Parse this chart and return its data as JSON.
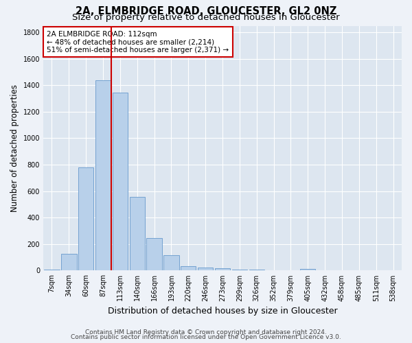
{
  "title": "2A, ELMBRIDGE ROAD, GLOUCESTER, GL2 0NZ",
  "subtitle": "Size of property relative to detached houses in Gloucester",
  "xlabel": "Distribution of detached houses by size in Gloucester",
  "ylabel": "Number of detached properties",
  "bar_color": "#b8d0ea",
  "bar_edge_color": "#6699cc",
  "categories": [
    "7sqm",
    "34sqm",
    "60sqm",
    "87sqm",
    "113sqm",
    "140sqm",
    "166sqm",
    "193sqm",
    "220sqm",
    "246sqm",
    "273sqm",
    "299sqm",
    "326sqm",
    "352sqm",
    "379sqm",
    "405sqm",
    "432sqm",
    "458sqm",
    "485sqm",
    "511sqm",
    "538sqm"
  ],
  "values": [
    10,
    125,
    780,
    1440,
    1345,
    555,
    245,
    115,
    35,
    25,
    20,
    10,
    8,
    0,
    0,
    15,
    0,
    0,
    0,
    0,
    0
  ],
  "vline_x_index": 3.5,
  "vline_color": "#cc0000",
  "annotation_text": "2A ELMBRIDGE ROAD: 112sqm\n← 48% of detached houses are smaller (2,214)\n51% of semi-detached houses are larger (2,371) →",
  "annotation_box_color": "#ffffff",
  "annotation_box_edgecolor": "#cc0000",
  "ylim": [
    0,
    1850
  ],
  "yticks": [
    0,
    200,
    400,
    600,
    800,
    1000,
    1200,
    1400,
    1600,
    1800
  ],
  "footer_line1": "Contains HM Land Registry data © Crown copyright and database right 2024.",
  "footer_line2": "Contains public sector information licensed under the Open Government Licence v3.0.",
  "bg_color": "#eef2f8",
  "plot_bg_color": "#dde6f0",
  "grid_color": "#ffffff",
  "title_fontsize": 10.5,
  "subtitle_fontsize": 9.5,
  "ylabel_fontsize": 8.5,
  "xlabel_fontsize": 9,
  "tick_fontsize": 7,
  "annotation_fontsize": 7.5,
  "footer_fontsize": 6.5
}
